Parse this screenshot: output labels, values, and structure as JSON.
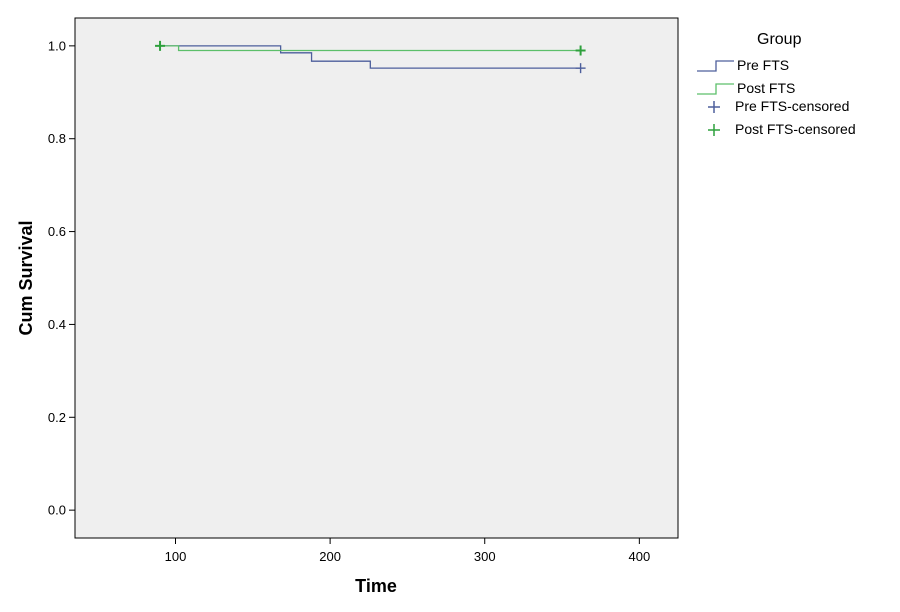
{
  "chart_data": {
    "type": "line",
    "subtype": "kaplan-meier step",
    "xlabel": "Time",
    "ylabel": "Cum Survival",
    "xlim": [
      35,
      425
    ],
    "ylim": [
      -0.06,
      1.06
    ],
    "x_ticks": [
      100,
      200,
      300,
      400
    ],
    "y_ticks": [
      0.0,
      0.2,
      0.4,
      0.6,
      0.8,
      1.0
    ],
    "x_tick_labels": [
      "100",
      "200",
      "300",
      "400"
    ],
    "y_tick_labels": [
      "0.0",
      "0.2",
      "0.4",
      "0.6",
      "0.8",
      "1.0"
    ],
    "grid": false,
    "background": "#efefef",
    "legend": {
      "title": "Group",
      "placement": "right",
      "entries": [
        "Pre FTS",
        "Post FTS",
        "Pre FTS-censored",
        "Post FTS-censored"
      ]
    },
    "series": [
      {
        "name": "Pre FTS",
        "color": "#4d5f9c",
        "steps": [
          [
            90,
            1.0
          ],
          [
            168,
            0.985
          ],
          [
            188,
            0.967
          ],
          [
            226,
            0.952
          ],
          [
            362,
            0.952
          ]
        ],
        "censored": [
          [
            362,
            0.952
          ]
        ]
      },
      {
        "name": "Post FTS",
        "color": "#5cbf6a",
        "censor_color": "#2ea03c",
        "steps": [
          [
            90,
            1.0
          ],
          [
            102,
            0.99
          ],
          [
            362,
            0.99
          ]
        ],
        "censored": [
          [
            90,
            1.0
          ],
          [
            362,
            0.99
          ]
        ]
      }
    ]
  }
}
